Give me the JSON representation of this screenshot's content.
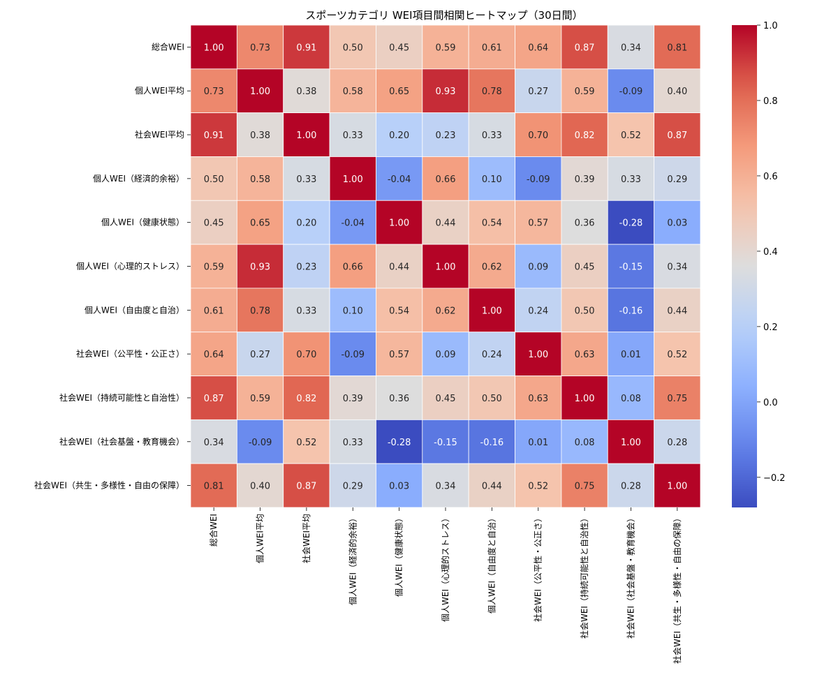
{
  "chart_data": {
    "type": "heatmap",
    "title": "スポーツカテゴリ WEI項目間相関ヒートマップ（30日間）",
    "xlabel": "",
    "ylabel": "",
    "categories": [
      "総合WEI",
      "個人WEI平均",
      "社会WEI平均",
      "個人WEI（経済的余裕）",
      "個人WEI（健康状態）",
      "個人WEI（心理的ストレス）",
      "個人WEI（自由度と自治）",
      "社会WEI（公平性・公正さ）",
      "社会WEI（持続可能性と自治性）",
      "社会WEI（社会基盤・教育機会）",
      "社会WEI（共生・多様性・自由の保障）"
    ],
    "matrix": [
      [
        1.0,
        0.73,
        0.91,
        0.5,
        0.45,
        0.59,
        0.61,
        0.64,
        0.87,
        0.34,
        0.81
      ],
      [
        0.73,
        1.0,
        0.38,
        0.58,
        0.65,
        0.93,
        0.78,
        0.27,
        0.59,
        -0.09,
        0.4
      ],
      [
        0.91,
        0.38,
        1.0,
        0.33,
        0.2,
        0.23,
        0.33,
        0.7,
        0.82,
        0.52,
        0.87
      ],
      [
        0.5,
        0.58,
        0.33,
        1.0,
        -0.04,
        0.66,
        0.1,
        -0.09,
        0.39,
        0.33,
        0.29
      ],
      [
        0.45,
        0.65,
        0.2,
        -0.04,
        1.0,
        0.44,
        0.54,
        0.57,
        0.36,
        -0.28,
        0.03
      ],
      [
        0.59,
        0.93,
        0.23,
        0.66,
        0.44,
        1.0,
        0.62,
        0.09,
        0.45,
        -0.15,
        0.34
      ],
      [
        0.61,
        0.78,
        0.33,
        0.1,
        0.54,
        0.62,
        1.0,
        0.24,
        0.5,
        -0.16,
        0.44
      ],
      [
        0.64,
        0.27,
        0.7,
        -0.09,
        0.57,
        0.09,
        0.24,
        1.0,
        0.63,
        0.01,
        0.52
      ],
      [
        0.87,
        0.59,
        0.82,
        0.39,
        0.36,
        0.45,
        0.5,
        0.63,
        1.0,
        0.08,
        0.75
      ],
      [
        0.34,
        -0.09,
        0.52,
        0.33,
        -0.28,
        -0.15,
        -0.16,
        0.01,
        0.08,
        1.0,
        0.28
      ],
      [
        0.81,
        0.4,
        0.87,
        0.29,
        0.03,
        0.34,
        0.44,
        0.52,
        0.75,
        0.28,
        1.0
      ]
    ],
    "colorscale": "coolwarm",
    "vmin": -0.28,
    "vmax": 1.0,
    "colorbar_ticks": [
      -0.2,
      0.0,
      0.2,
      0.4,
      0.6,
      0.8,
      1.0
    ],
    "colorbar_tick_labels": [
      "−0.2",
      "0.0",
      "0.2",
      "0.4",
      "0.6",
      "0.8",
      "1.0"
    ],
    "annotations_format": "2 decimals",
    "legend": "colorbar-right"
  }
}
